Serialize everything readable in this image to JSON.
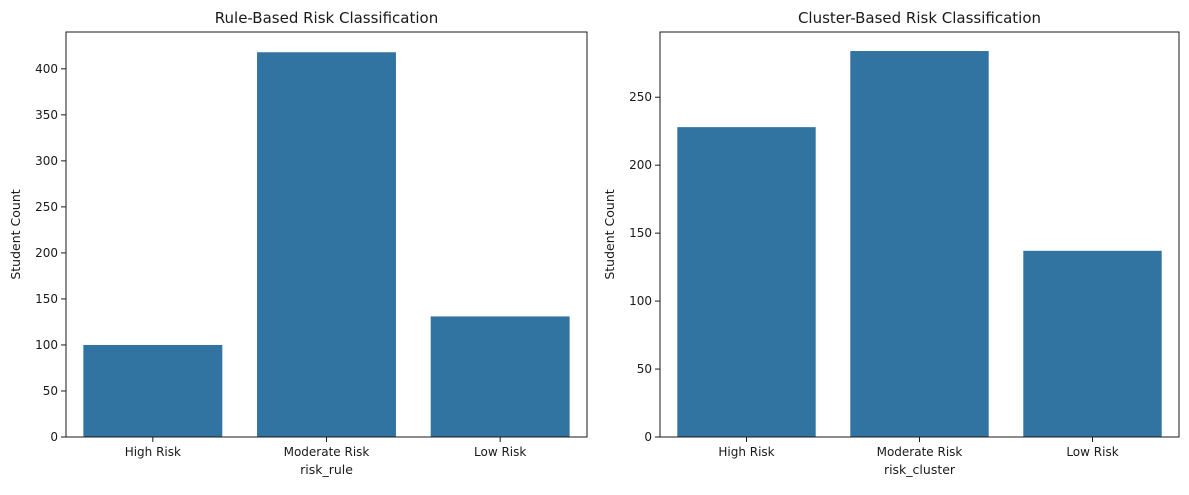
{
  "chart_data": [
    {
      "type": "bar",
      "title": "Rule-Based Risk Classification",
      "xlabel": "risk_rule",
      "ylabel": "Student Count",
      "categories": [
        "High Risk",
        "Moderate Risk",
        "Low Risk"
      ],
      "values": [
        100,
        418,
        131
      ],
      "ylim": [
        0,
        440
      ],
      "yticks": [
        0,
        50,
        100,
        150,
        200,
        250,
        300,
        350,
        400
      ],
      "bar_color": "#3274a1",
      "grid": false,
      "legend": "none"
    },
    {
      "type": "bar",
      "title": "Cluster-Based Risk Classification",
      "xlabel": "risk_cluster",
      "ylabel": "Student Count",
      "categories": [
        "High Risk",
        "Moderate Risk",
        "Low Risk"
      ],
      "values": [
        228,
        284,
        137
      ],
      "ylim": [
        0,
        298
      ],
      "yticks": [
        0,
        50,
        100,
        150,
        200,
        250
      ],
      "bar_color": "#3274a1",
      "grid": false,
      "legend": "none"
    }
  ]
}
